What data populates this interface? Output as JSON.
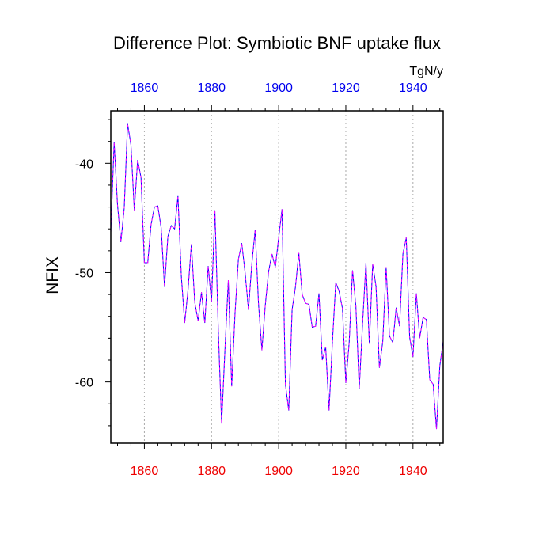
{
  "chart_data": {
    "type": "line",
    "title": "Difference Plot: Symbiotic BNF uptake flux",
    "units": "TgN/y",
    "ylabel": "NFIX",
    "xlim": [
      1850,
      1949
    ],
    "ylim": [
      -65.6,
      -35.2
    ],
    "x_ticks": [
      1860,
      1880,
      1900,
      1920,
      1940
    ],
    "x_tick_labels": [
      "1860",
      "1880",
      "1900",
      "1920",
      "1940"
    ],
    "y_ticks": [
      -40,
      -50,
      -60
    ],
    "y_tick_labels": [
      "-40",
      "-50",
      "-60"
    ],
    "top_axis_color": "#0000ee",
    "bottom_axis_color": "#ee0000",
    "vertical_gridlines": true,
    "series": [
      {
        "colors": [
          "#0000ff",
          "#ff00ff"
        ],
        "style": "dashed",
        "x": [
          1850,
          1851,
          1852,
          1853,
          1854,
          1855,
          1856,
          1857,
          1858,
          1859,
          1860,
          1861,
          1862,
          1863,
          1864,
          1865,
          1866,
          1867,
          1868,
          1869,
          1870,
          1871,
          1872,
          1873,
          1874,
          1875,
          1876,
          1877,
          1878,
          1879,
          1880,
          1881,
          1882,
          1883,
          1884,
          1885,
          1886,
          1887,
          1888,
          1889,
          1890,
          1891,
          1892,
          1893,
          1894,
          1895,
          1896,
          1897,
          1898,
          1899,
          1900,
          1901,
          1902,
          1903,
          1904,
          1905,
          1906,
          1907,
          1908,
          1909,
          1910,
          1911,
          1912,
          1913,
          1914,
          1915,
          1916,
          1917,
          1918,
          1919,
          1920,
          1921,
          1922,
          1923,
          1924,
          1925,
          1926,
          1927,
          1928,
          1929,
          1930,
          1931,
          1932,
          1933,
          1934,
          1935,
          1936,
          1937,
          1938,
          1939,
          1940,
          1941,
          1942,
          1943,
          1944,
          1945,
          1946,
          1947,
          1948,
          1949
        ],
        "y": [
          -46.3,
          -38.1,
          -43.8,
          -47.2,
          -44.1,
          -36.4,
          -38.3,
          -44.3,
          -39.7,
          -41.3,
          -49.1,
          -49.1,
          -45.6,
          -44.0,
          -43.9,
          -45.9,
          -51.3,
          -46.7,
          -45.7,
          -46.0,
          -43.0,
          -50.3,
          -54.6,
          -51.6,
          -47.4,
          -52.7,
          -54.4,
          -51.8,
          -54.6,
          -49.4,
          -52.7,
          -44.3,
          -55.1,
          -63.8,
          -57.0,
          -50.7,
          -60.4,
          -53.7,
          -48.8,
          -47.3,
          -50.0,
          -53.4,
          -49.2,
          -46.1,
          -52.9,
          -57.1,
          -53.0,
          -49.9,
          -48.3,
          -49.5,
          -46.8,
          -44.2,
          -60.2,
          -62.6,
          -53.4,
          -51.3,
          -48.2,
          -52.0,
          -52.8,
          -52.9,
          -55.0,
          -54.9,
          -51.9,
          -58.0,
          -56.8,
          -62.6,
          -56.4,
          -50.9,
          -51.7,
          -53.3,
          -60.1,
          -56.4,
          -49.8,
          -53.1,
          -60.6,
          -54.6,
          -49.1,
          -56.5,
          -49.2,
          -51.3,
          -58.7,
          -56.3,
          -49.5,
          -55.8,
          -56.4,
          -53.2,
          -54.9,
          -48.3,
          -46.8,
          -55.9,
          -57.7,
          -51.9,
          -56.0,
          -54.1,
          -54.3,
          -59.8,
          -60.2,
          -64.3,
          -58.5,
          -56.3
        ]
      }
    ]
  }
}
